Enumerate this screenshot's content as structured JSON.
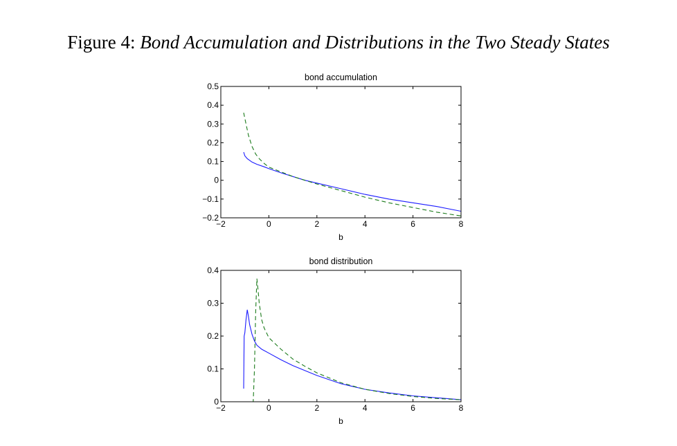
{
  "figure": {
    "label": "Figure 4:",
    "title": "Bond Accumulation and Distributions in the Two Steady States"
  },
  "colors": {
    "series_solid": "#1a1aff",
    "series_dashed": "#1a7a1a",
    "axes": "#000000"
  },
  "chart_data": [
    {
      "type": "line",
      "title": "bond accumulation",
      "xlabel": "b",
      "ylabel": "",
      "xlim": [
        -2,
        8
      ],
      "ylim": [
        -0.2,
        0.5
      ],
      "xticks": [
        -2,
        0,
        2,
        4,
        6,
        8
      ],
      "xtick_labels": [
        "−2",
        "0",
        "2",
        "4",
        "6",
        "8"
      ],
      "yticks": [
        -0.2,
        -0.1,
        0,
        0.1,
        0.2,
        0.3,
        0.4,
        0.5
      ],
      "ytick_labels": [
        "−0.2",
        "−0.1",
        "0",
        "0.1",
        "0.2",
        "0.3",
        "0.4",
        "0.5"
      ],
      "grid": false,
      "series": [
        {
          "style": "solid",
          "color": "#1a1aff",
          "x": [
            -1.05,
            -1.0,
            -0.9,
            -0.7,
            -0.5,
            -0.2,
            0,
            0.5,
            1,
            1.5,
            2,
            3,
            4,
            5,
            6,
            7,
            8
          ],
          "y": [
            0.15,
            0.13,
            0.115,
            0.097,
            0.085,
            0.072,
            0.062,
            0.04,
            0.02,
            0.0,
            -0.015,
            -0.045,
            -0.075,
            -0.1,
            -0.12,
            -0.14,
            -0.165
          ]
        },
        {
          "style": "dashed",
          "color": "#1a7a1a",
          "x": [
            -1.05,
            -0.95,
            -0.85,
            -0.7,
            -0.55,
            -0.4,
            -0.2,
            0,
            0.5,
            1,
            1.5,
            2,
            3,
            4,
            5,
            6,
            7,
            8
          ],
          "y": [
            0.36,
            0.3,
            0.24,
            0.18,
            0.14,
            0.115,
            0.09,
            0.07,
            0.045,
            0.02,
            0.0,
            -0.02,
            -0.055,
            -0.09,
            -0.12,
            -0.145,
            -0.17,
            -0.19
          ]
        }
      ]
    },
    {
      "type": "line",
      "title": "bond distribution",
      "xlabel": "b",
      "ylabel": "",
      "xlim": [
        -2,
        8
      ],
      "ylim": [
        0,
        0.4
      ],
      "xticks": [
        -2,
        0,
        2,
        4,
        6,
        8
      ],
      "xtick_labels": [
        "−2",
        "0",
        "2",
        "4",
        "6",
        "8"
      ],
      "yticks": [
        0,
        0.1,
        0.2,
        0.3,
        0.4
      ],
      "ytick_labels": [
        "0",
        "0.1",
        "0.2",
        "0.3",
        "0.4"
      ],
      "grid": false,
      "series": [
        {
          "style": "solid",
          "color": "#1a1aff",
          "x": [
            -1.05,
            -1.03,
            -1.0,
            -0.95,
            -0.9,
            -0.85,
            -0.8,
            -0.7,
            -0.6,
            -0.5,
            -0.3,
            0,
            0.5,
            1,
            2,
            3,
            4,
            5,
            6,
            7,
            8
          ],
          "y": [
            0.04,
            0.2,
            0.21,
            0.25,
            0.28,
            0.26,
            0.235,
            0.205,
            0.185,
            0.172,
            0.16,
            0.148,
            0.128,
            0.11,
            0.08,
            0.055,
            0.038,
            0.027,
            0.018,
            0.012,
            0.006
          ]
        },
        {
          "style": "dashed",
          "color": "#1a7a1a",
          "x": [
            -1.0,
            -0.65,
            -0.6,
            -0.55,
            -0.5,
            -0.45,
            -0.4,
            -0.3,
            -0.2,
            0,
            0.5,
            1,
            1.5,
            2,
            3,
            4,
            5,
            6,
            7,
            8
          ],
          "y": [
            0.0,
            0.0,
            0.1,
            0.27,
            0.375,
            0.34,
            0.3,
            0.25,
            0.225,
            0.195,
            0.16,
            0.13,
            0.108,
            0.088,
            0.058,
            0.038,
            0.025,
            0.016,
            0.01,
            0.006
          ]
        }
      ]
    }
  ]
}
